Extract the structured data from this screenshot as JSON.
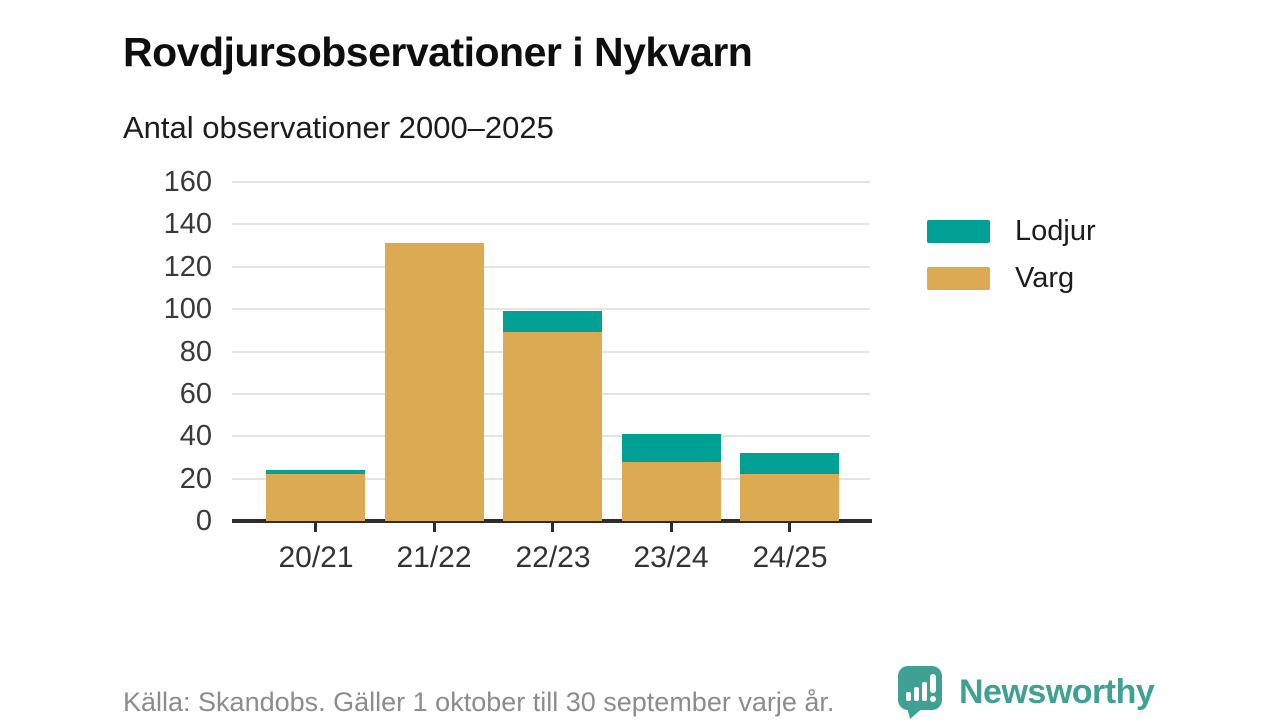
{
  "header": {
    "title": "Rovdjursobservationer i Nykvarn",
    "subtitle": "Antal observationer 2000–2025"
  },
  "chart_data": {
    "type": "bar",
    "stacked": true,
    "title": "Rovdjursobservationer i Nykvarn",
    "subtitle": "Antal observationer 2000–2025",
    "categories": [
      "20/21",
      "21/22",
      "22/23",
      "23/24",
      "24/25"
    ],
    "series": [
      {
        "name": "Lodjur",
        "color": "#00a095",
        "values": [
          2,
          0,
          10,
          13,
          10
        ]
      },
      {
        "name": "Varg",
        "color": "#dcaa52",
        "values": [
          22,
          131,
          89,
          28,
          22
        ]
      }
    ],
    "totals": [
      24,
      131,
      99,
      41,
      32
    ],
    "xlabel": "",
    "ylabel": "",
    "ylim": [
      0,
      160
    ],
    "yticks": [
      0,
      20,
      40,
      60,
      80,
      100,
      120,
      140,
      160
    ],
    "grid": true,
    "legend_position": "right"
  },
  "footer": {
    "source": "Källa: Skandobs. Gäller 1 oktober till 30 september varje år.",
    "brand": "Newsworthy",
    "brand_color": "#3fa193"
  }
}
